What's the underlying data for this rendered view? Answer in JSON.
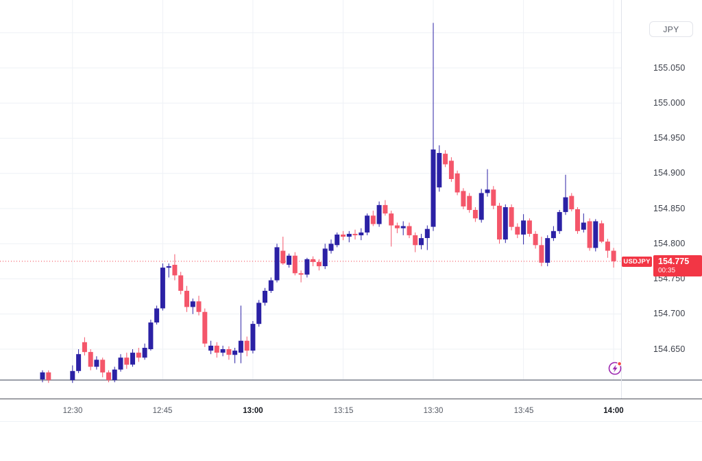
{
  "price_axis": {
    "currency_button": "JPY",
    "ticks": [
      {
        "label": "155.050",
        "price": 155.05
      },
      {
        "label": "155.000",
        "price": 155.0
      },
      {
        "label": "154.950",
        "price": 154.95
      },
      {
        "label": "154.900",
        "price": 154.9
      },
      {
        "label": "154.850",
        "price": 154.85
      },
      {
        "label": "154.800",
        "price": 154.8
      },
      {
        "label": "154.750",
        "price": 154.75
      },
      {
        "label": "154.700",
        "price": 154.7
      },
      {
        "label": "154.650",
        "price": 154.65
      }
    ]
  },
  "time_axis": {
    "ticks": [
      {
        "label": "12:30",
        "m": 5,
        "bold": false
      },
      {
        "label": "12:45",
        "m": 20,
        "bold": false
      },
      {
        "label": "13:00",
        "m": 35,
        "bold": true
      },
      {
        "label": "13:15",
        "m": 50,
        "bold": false
      },
      {
        "label": "13:30",
        "m": 65,
        "bold": false
      },
      {
        "label": "13:45",
        "m": 80,
        "bold": false
      },
      {
        "label": "14:00",
        "m": 95,
        "bold": true
      }
    ]
  },
  "price_label": {
    "symbol": "USDJPY",
    "price": "154.775",
    "countdown": "00:35"
  },
  "colors": {
    "up": "#2b21a5",
    "down": "#f4566a",
    "accent_red": "#f23645",
    "grid": "#eef1f6",
    "pane_line": "#9a9ea8",
    "axis_line": "#4a4e57",
    "axis_sep": "#e0e3eb",
    "icon_purple": "#9c27b0",
    "icon_dot": "#f5483f"
  },
  "chart_data": {
    "type": "candlestick",
    "symbol": "USDJPY",
    "quote_currency": "JPY",
    "interval_minutes": 1,
    "current_price": 154.775,
    "countdown": "00:35",
    "y_range": [
      154.6,
      155.12
    ],
    "y_tick_step": 0.05,
    "y_gridlines": [
      155.1,
      155.05,
      155.0,
      154.95,
      154.9,
      154.85,
      154.8,
      154.75,
      154.7,
      154.65
    ],
    "legend_note": "candle format: [time, minute_index, open, high, low, close]",
    "candles": [
      [
        "12:25",
        0,
        154.607,
        154.62,
        154.603,
        154.617
      ],
      [
        "12:26",
        1,
        154.617,
        154.62,
        154.602,
        154.606
      ],
      [
        "12:30",
        5,
        154.606,
        154.627,
        154.602,
        154.619
      ],
      [
        "12:31",
        6,
        154.619,
        154.65,
        154.616,
        154.643
      ],
      [
        "12:32",
        7,
        154.66,
        154.667,
        154.641,
        154.646
      ],
      [
        "12:33",
        8,
        154.646,
        154.65,
        154.62,
        154.625
      ],
      [
        "12:34",
        9,
        154.625,
        154.64,
        154.621,
        154.635
      ],
      [
        "12:35",
        10,
        154.635,
        154.638,
        154.61,
        154.617
      ],
      [
        "12:36",
        11,
        154.617,
        154.62,
        154.603,
        154.606
      ],
      [
        "12:37",
        12,
        154.606,
        154.625,
        154.603,
        154.621
      ],
      [
        "12:38",
        13,
        154.621,
        154.643,
        154.618,
        154.638
      ],
      [
        "12:39",
        14,
        154.638,
        154.645,
        154.622,
        154.628
      ],
      [
        "12:40",
        15,
        154.628,
        154.65,
        154.625,
        154.645
      ],
      [
        "12:41",
        16,
        154.645,
        154.652,
        154.632,
        154.638
      ],
      [
        "12:42",
        17,
        154.638,
        154.658,
        154.635,
        154.652
      ],
      [
        "12:43",
        18,
        154.65,
        154.692,
        154.648,
        154.688
      ],
      [
        "12:44",
        19,
        154.688,
        154.712,
        154.685,
        154.708
      ],
      [
        "12:45",
        20,
        154.708,
        154.772,
        154.705,
        154.766
      ],
      [
        "12:46",
        21,
        154.766,
        154.772,
        154.752,
        154.768
      ],
      [
        "12:47",
        22,
        154.77,
        154.785,
        154.748,
        154.755
      ],
      [
        "12:48",
        23,
        154.755,
        154.76,
        154.728,
        154.733
      ],
      [
        "12:49",
        24,
        154.733,
        154.74,
        154.703,
        154.71
      ],
      [
        "12:50",
        25,
        154.71,
        154.722,
        154.7,
        154.718
      ],
      [
        "12:51",
        26,
        154.718,
        154.726,
        154.698,
        154.703
      ],
      [
        "12:52",
        27,
        154.703,
        154.708,
        154.653,
        154.658
      ],
      [
        "12:53",
        28,
        154.648,
        154.662,
        154.643,
        154.655
      ],
      [
        "12:54",
        29,
        154.655,
        154.66,
        154.638,
        154.645
      ],
      [
        "12:55",
        30,
        154.645,
        154.655,
        154.64,
        154.65
      ],
      [
        "12:56",
        31,
        154.65,
        154.654,
        154.635,
        154.642
      ],
      [
        "12:57",
        32,
        154.642,
        154.652,
        154.63,
        154.648
      ],
      [
        "12:58",
        33,
        154.645,
        154.712,
        154.63,
        154.662
      ],
      [
        "12:59",
        34,
        154.662,
        154.668,
        154.64,
        154.648
      ],
      [
        "13:00",
        35,
        154.648,
        154.69,
        154.644,
        154.686
      ],
      [
        "13:01",
        36,
        154.686,
        154.72,
        154.682,
        154.716
      ],
      [
        "13:02",
        37,
        154.716,
        154.737,
        154.712,
        154.733
      ],
      [
        "13:03",
        38,
        154.733,
        154.752,
        154.73,
        154.748
      ],
      [
        "13:04",
        39,
        154.748,
        154.8,
        154.745,
        154.795
      ],
      [
        "13:05",
        40,
        154.79,
        154.81,
        154.77,
        154.772
      ],
      [
        "13:06",
        41,
        154.77,
        154.786,
        154.766,
        154.783
      ],
      [
        "13:07",
        42,
        154.783,
        154.788,
        154.755,
        154.758
      ],
      [
        "13:08",
        43,
        154.758,
        154.762,
        154.745,
        154.756
      ],
      [
        "13:09",
        44,
        154.756,
        154.78,
        154.752,
        154.778
      ],
      [
        "13:10",
        45,
        154.778,
        154.782,
        154.768,
        154.774
      ],
      [
        "13:11",
        46,
        154.774,
        154.778,
        154.762,
        154.768
      ],
      [
        "13:12",
        47,
        154.768,
        154.8,
        154.764,
        154.793
      ],
      [
        "13:13",
        48,
        154.79,
        154.806,
        154.786,
        154.8
      ],
      [
        "13:14",
        49,
        154.798,
        154.816,
        154.795,
        154.813
      ],
      [
        "13:15",
        50,
        154.813,
        154.818,
        154.805,
        154.81
      ],
      [
        "13:16",
        51,
        154.81,
        154.818,
        154.802,
        154.814
      ],
      [
        "13:17",
        52,
        154.814,
        154.82,
        154.806,
        154.812
      ],
      [
        "13:18",
        53,
        154.812,
        154.822,
        154.805,
        154.816
      ],
      [
        "13:19",
        54,
        154.816,
        154.843,
        154.812,
        154.84
      ],
      [
        "13:20",
        55,
        154.84,
        154.847,
        154.825,
        154.828
      ],
      [
        "13:21",
        56,
        154.828,
        154.86,
        154.824,
        154.855
      ],
      [
        "13:22",
        57,
        154.855,
        154.862,
        154.84,
        154.843
      ],
      [
        "13:23",
        58,
        154.843,
        154.847,
        154.796,
        154.826
      ],
      [
        "13:24",
        59,
        154.826,
        154.83,
        154.815,
        154.822
      ],
      [
        "13:25",
        60,
        154.822,
        154.832,
        154.812,
        154.825
      ],
      [
        "13:26",
        61,
        154.825,
        154.83,
        154.808,
        154.812
      ],
      [
        "13:27",
        62,
        154.812,
        154.816,
        154.788,
        154.798
      ],
      [
        "13:28",
        63,
        154.798,
        154.814,
        154.792,
        154.808
      ],
      [
        "13:29",
        64,
        154.808,
        154.826,
        154.791,
        154.821
      ],
      [
        "13:30",
        65,
        154.824,
        155.114,
        154.818,
        154.934
      ],
      [
        "13:31",
        66,
        154.88,
        154.94,
        154.874,
        154.929
      ],
      [
        "13:32",
        67,
        154.928,
        154.933,
        154.909,
        154.913
      ],
      [
        "13:33",
        68,
        154.918,
        154.923,
        154.888,
        154.892
      ],
      [
        "13:34",
        69,
        154.9,
        154.904,
        154.869,
        154.873
      ],
      [
        "13:35",
        70,
        154.875,
        154.879,
        154.849,
        154.853
      ],
      [
        "13:36",
        71,
        154.868,
        154.872,
        154.844,
        154.848
      ],
      [
        "13:37",
        72,
        154.848,
        154.852,
        154.831,
        154.836
      ],
      [
        "13:38",
        73,
        154.834,
        154.878,
        154.83,
        154.872
      ],
      [
        "13:39",
        74,
        154.872,
        154.906,
        154.867,
        154.877
      ],
      [
        "13:40",
        75,
        154.877,
        154.882,
        154.849,
        154.854
      ],
      [
        "13:41",
        76,
        154.854,
        154.858,
        154.8,
        154.806
      ],
      [
        "13:42",
        77,
        154.806,
        154.856,
        154.801,
        154.852
      ],
      [
        "13:43",
        78,
        154.852,
        154.856,
        154.819,
        154.824
      ],
      [
        "13:44",
        79,
        154.824,
        154.829,
        154.808,
        154.813
      ],
      [
        "13:45",
        80,
        154.813,
        154.842,
        154.799,
        154.833
      ],
      [
        "13:46",
        81,
        154.833,
        154.836,
        154.81,
        154.814
      ],
      [
        "13:47",
        82,
        154.814,
        154.818,
        154.793,
        154.798
      ],
      [
        "13:48",
        83,
        154.798,
        154.81,
        154.768,
        154.773
      ],
      [
        "13:49",
        84,
        154.773,
        154.812,
        154.768,
        154.808
      ],
      [
        "13:50",
        85,
        154.808,
        154.825,
        154.804,
        154.818
      ],
      [
        "13:51",
        86,
        154.818,
        154.848,
        154.814,
        154.845
      ],
      [
        "13:52",
        87,
        154.845,
        154.898,
        154.841,
        154.866
      ],
      [
        "13:53",
        88,
        154.868,
        154.872,
        154.846,
        154.849
      ],
      [
        "13:54",
        89,
        154.849,
        154.852,
        154.814,
        154.818
      ],
      [
        "13:55",
        90,
        154.82,
        154.843,
        154.816,
        154.83
      ],
      [
        "13:56",
        91,
        154.832,
        154.836,
        154.79,
        154.794
      ],
      [
        "13:57",
        92,
        154.794,
        154.835,
        154.789,
        154.832
      ],
      [
        "13:58",
        93,
        154.829,
        154.833,
        154.801,
        154.803
      ],
      [
        "13:59",
        94,
        154.803,
        154.807,
        154.78,
        154.79
      ],
      [
        "14:00",
        95,
        154.79,
        154.794,
        154.766,
        154.775
      ]
    ]
  }
}
